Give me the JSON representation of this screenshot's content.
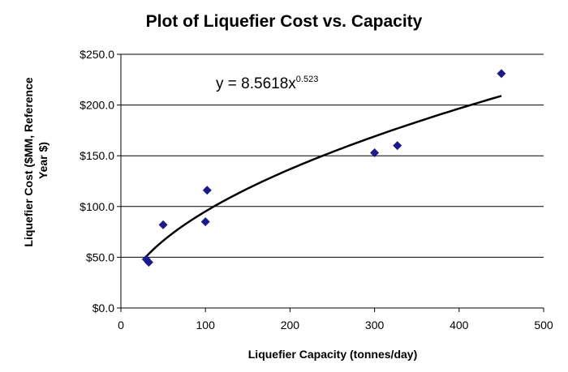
{
  "chart_data": {
    "type": "scatter",
    "title": "Plot of Liquefier Cost vs. Capacity",
    "xlabel": "Liquefier Capacity (tonnes/day)",
    "ylabel_lines": [
      "Liquefier Cost ($MM, Reference",
      "Year $)"
    ],
    "xlim": [
      0,
      500
    ],
    "ylim": [
      0,
      250
    ],
    "x_ticks": [
      0,
      100,
      200,
      300,
      400,
      500
    ],
    "y_ticks": [
      0,
      50,
      100,
      150,
      200,
      250
    ],
    "x_tick_labels": [
      "0",
      "100",
      "200",
      "300",
      "400",
      "500"
    ],
    "y_tick_labels": [
      "$0.0",
      "$50.0",
      "$100.0",
      "$150.0",
      "$200.0",
      "$250.0"
    ],
    "grid": "horizontal",
    "marker_color": "#1a1a8c",
    "points": [
      {
        "x": 30,
        "y": 48
      },
      {
        "x": 33,
        "y": 45
      },
      {
        "x": 50,
        "y": 82
      },
      {
        "x": 100,
        "y": 85
      },
      {
        "x": 102,
        "y": 116
      },
      {
        "x": 300,
        "y": 153
      },
      {
        "x": 327,
        "y": 160
      },
      {
        "x": 450,
        "y": 231
      }
    ],
    "trendline": {
      "type": "power",
      "coefficient": 8.5618,
      "exponent": 0.523,
      "x_range": [
        30,
        450
      ],
      "equation_base": "y = 8.5618x",
      "equation_exponent": "0.523"
    }
  }
}
